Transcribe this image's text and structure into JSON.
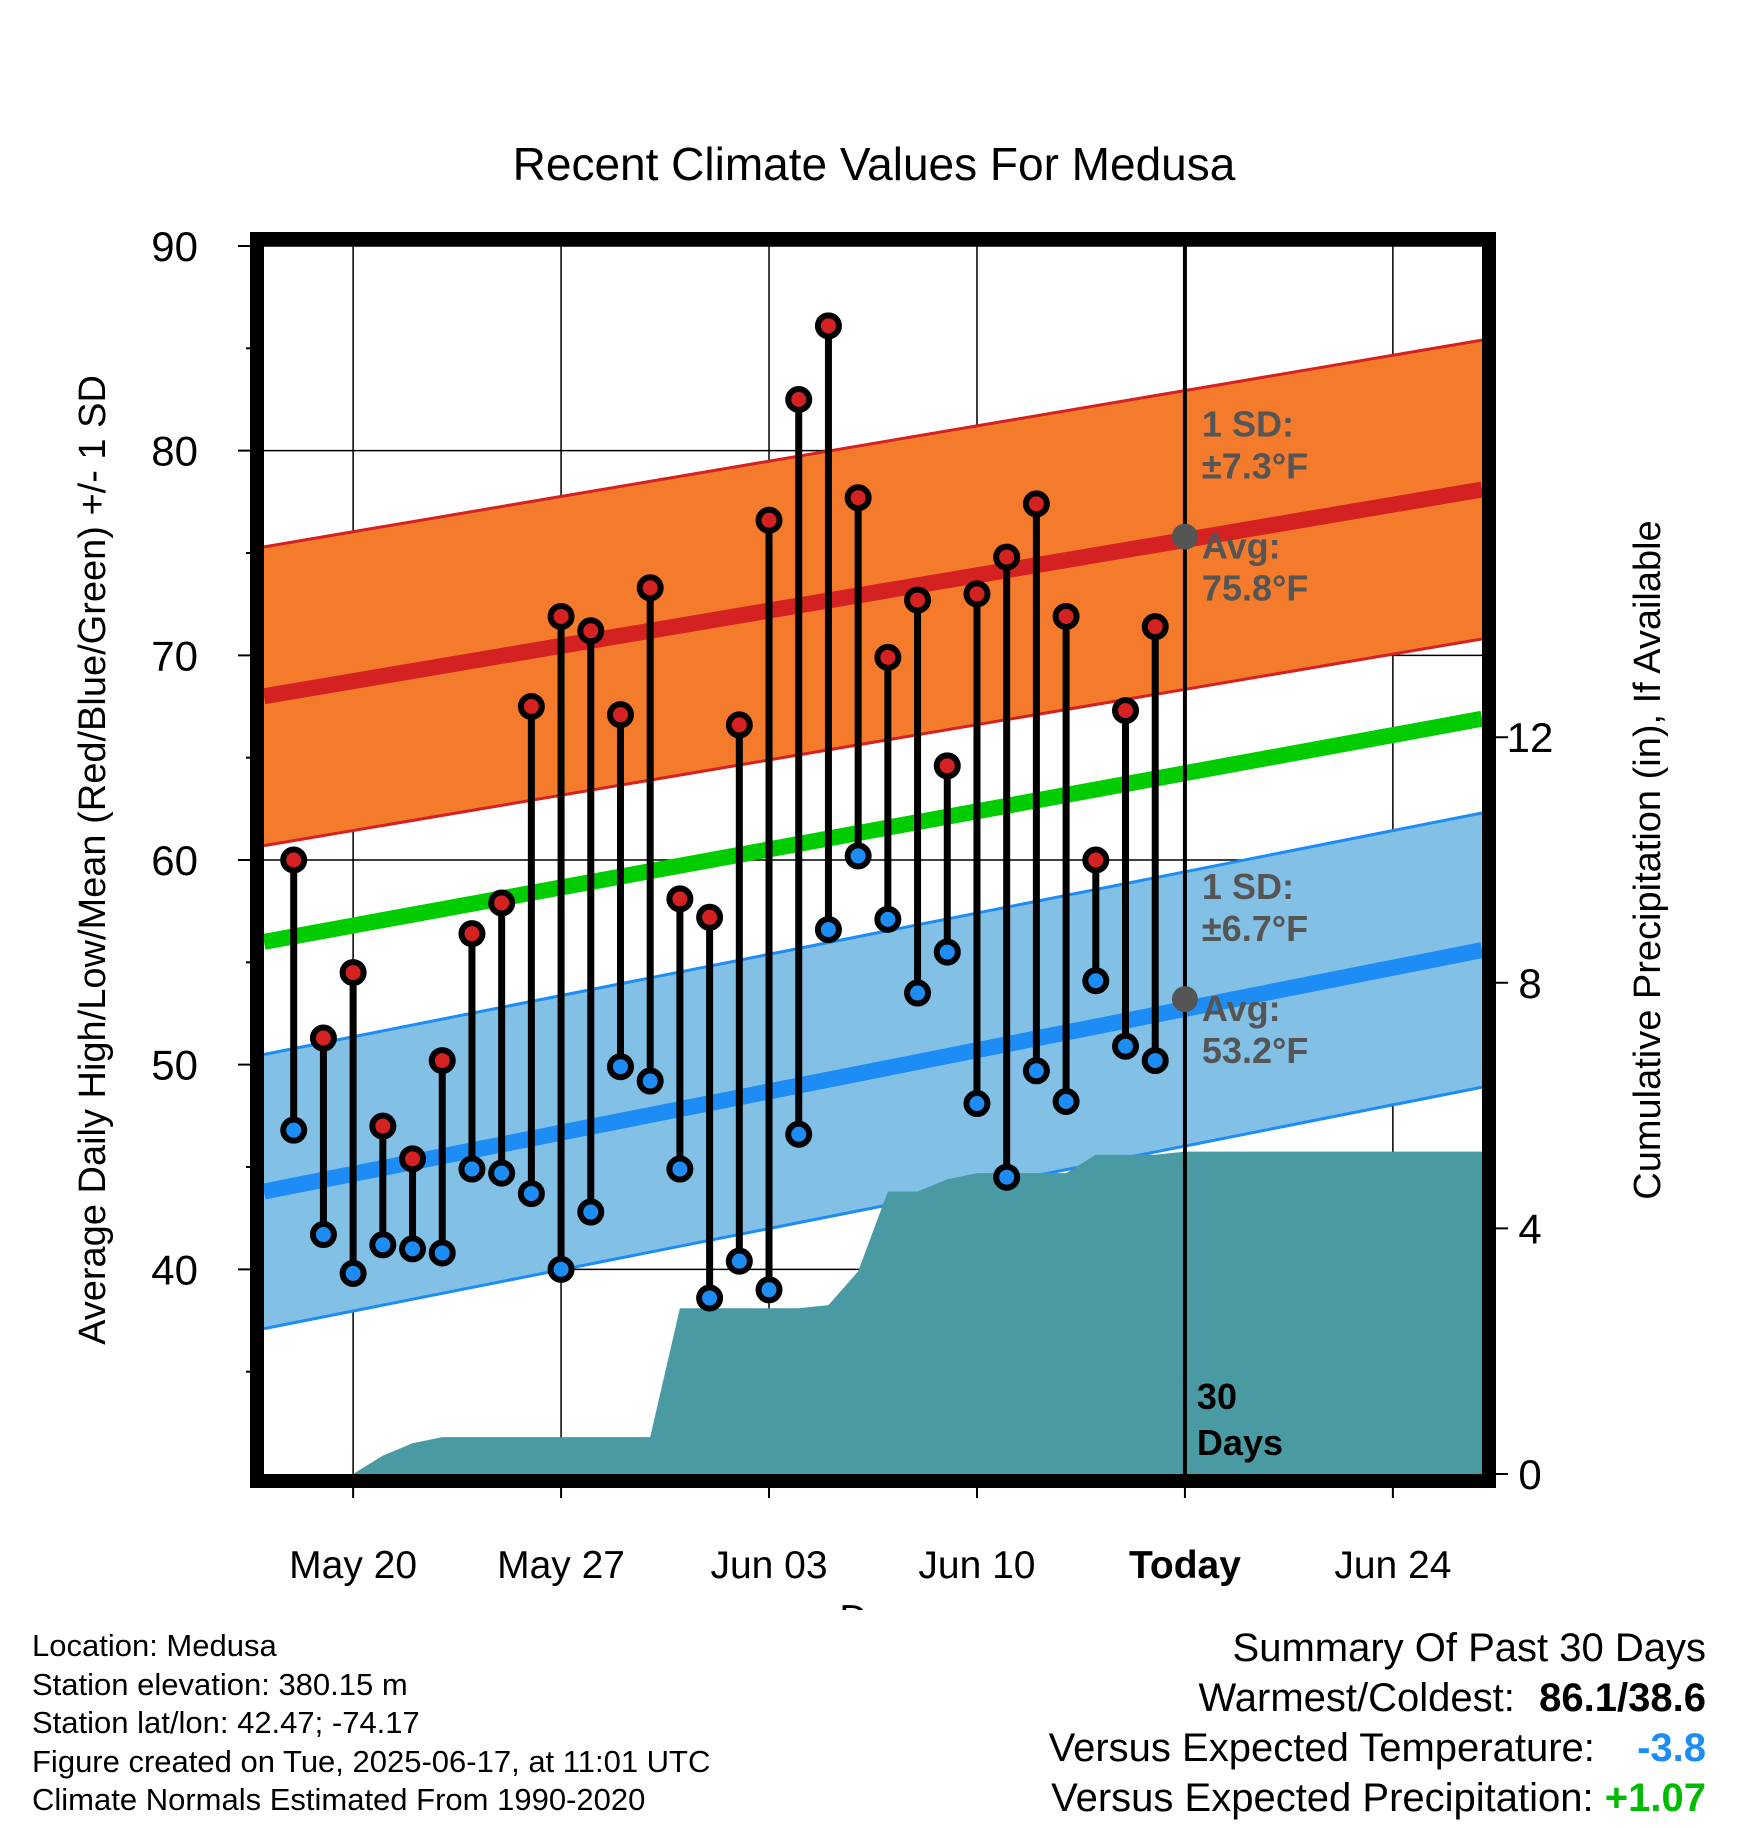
{
  "chart_data": {
    "type": "line",
    "title": "Recent Climate Values For Medusa",
    "xlabel": "Day",
    "ylabel": "Average Daily High/Low/Mean (Red/Blue/Green) +/- 1 SD",
    "ylabel_right": "Cumulative Precipitation (in), If Available",
    "ylim": [
      30,
      90
    ],
    "ylim_right": [
      0,
      20
    ],
    "yticks": [
      40,
      50,
      60,
      70,
      80,
      90
    ],
    "yticks_right": [
      0,
      4,
      8,
      12
    ],
    "xticks": [
      "May 20",
      "May 27",
      "Jun 03",
      "Jun 10",
      "Today",
      "Jun 24"
    ],
    "xrange": [
      "2025-05-17",
      "2025-06-27"
    ],
    "today": "2025-06-17",
    "today_label": "30\nDays",
    "normal_high": {
      "start": [
        "2025-05-17",
        68.0
      ],
      "end": [
        "2025-06-27",
        78.1
      ],
      "sd": 7.3,
      "today_avg": 75.8
    },
    "normal_low": {
      "start": [
        "2025-05-17",
        43.8
      ],
      "end": [
        "2025-06-27",
        55.6
      ],
      "sd": 6.7,
      "today_avg": 53.2
    },
    "normal_mean": {
      "start": [
        "2025-05-17",
        56.0
      ],
      "end": [
        "2025-06-27",
        66.9
      ]
    },
    "high_annotation": [
      "1 SD:",
      "±7.3°F",
      "Avg:",
      "75.8°F"
    ],
    "low_annotation": [
      "1 SD:",
      "±6.7°F",
      "Avg:",
      "53.2°F"
    ],
    "daily": {
      "dates": [
        "2025-05-18",
        "2025-05-19",
        "2025-05-20",
        "2025-05-21",
        "2025-05-22",
        "2025-05-23",
        "2025-05-24",
        "2025-05-25",
        "2025-05-26",
        "2025-05-27",
        "2025-05-28",
        "2025-05-29",
        "2025-05-30",
        "2025-05-31",
        "2025-06-01",
        "2025-06-02",
        "2025-06-03",
        "2025-06-04",
        "2025-06-05",
        "2025-06-06",
        "2025-06-07",
        "2025-06-08",
        "2025-06-09",
        "2025-06-10",
        "2025-06-11",
        "2025-06-12",
        "2025-06-13",
        "2025-06-14",
        "2025-06-15",
        "2025-06-16"
      ],
      "highs": [
        60.0,
        51.3,
        54.5,
        47.0,
        45.4,
        50.2,
        56.4,
        57.9,
        67.5,
        71.9,
        71.2,
        67.1,
        73.3,
        58.1,
        57.2,
        66.6,
        76.6,
        82.5,
        86.1,
        77.7,
        69.9,
        72.7,
        64.6,
        73.0,
        74.8,
        77.4,
        71.9,
        60.0,
        67.3,
        71.4
      ],
      "lows": [
        46.8,
        41.7,
        39.8,
        41.2,
        41.0,
        40.8,
        44.9,
        44.7,
        43.7,
        40.0,
        42.8,
        49.9,
        49.2,
        44.9,
        38.6,
        40.4,
        39.0,
        46.6,
        56.6,
        60.2,
        57.1,
        53.5,
        55.5,
        48.1,
        44.5,
        49.7,
        48.2,
        54.1,
        50.9,
        50.2
      ]
    },
    "precip": {
      "dates": [
        "2025-05-17",
        "2025-05-19",
        "2025-05-20",
        "2025-05-21",
        "2025-05-22",
        "2025-05-23",
        "2025-05-24",
        "2025-05-29",
        "2025-05-30",
        "2025-05-31",
        "2025-06-04",
        "2025-06-05",
        "2025-06-06",
        "2025-06-07",
        "2025-06-08",
        "2025-06-09",
        "2025-06-10",
        "2025-06-13",
        "2025-06-14",
        "2025-06-16",
        "2025-06-17",
        "2025-06-27"
      ],
      "values": [
        0,
        0,
        0,
        0.3,
        0.5,
        0.6,
        0.6,
        0.6,
        0.6,
        2.7,
        2.7,
        2.75,
        3.3,
        4.6,
        4.6,
        4.8,
        4.9,
        4.9,
        5.2,
        5.2,
        5.25,
        5.25
      ]
    },
    "colors": {
      "high_band": "#f47a2c",
      "high_line": "#d42121",
      "low_band": "#82c0e6",
      "low_line": "#1e8cf5",
      "mean_line": "#00cc00",
      "precip": "#4a9aa3",
      "high_dot": "#d42121",
      "low_dot": "#1e8cf5",
      "annotation": "#555555"
    }
  },
  "footer": {
    "location": "Location: Medusa",
    "elevation": "Station elevation: 380.15 m",
    "latlon": "Station lat/lon: 42.47; -74.17",
    "created": "Figure created on Tue, 2025-06-17, at 11:01 UTC",
    "normals": "Climate Normals Estimated From 1990-2020"
  },
  "summary": {
    "title": "Summary Of Past 30 Days",
    "warm_cold_label": "Warmest/Coldest:",
    "warm_cold_value": "86.1/38.6",
    "temp_label": "Versus Expected Temperature:",
    "temp_value": "-3.8",
    "temp_color": "#1e8cf5",
    "precip_label": "Versus Expected Precipitation:",
    "precip_value": "+1.07",
    "precip_color": "#00bb00"
  }
}
